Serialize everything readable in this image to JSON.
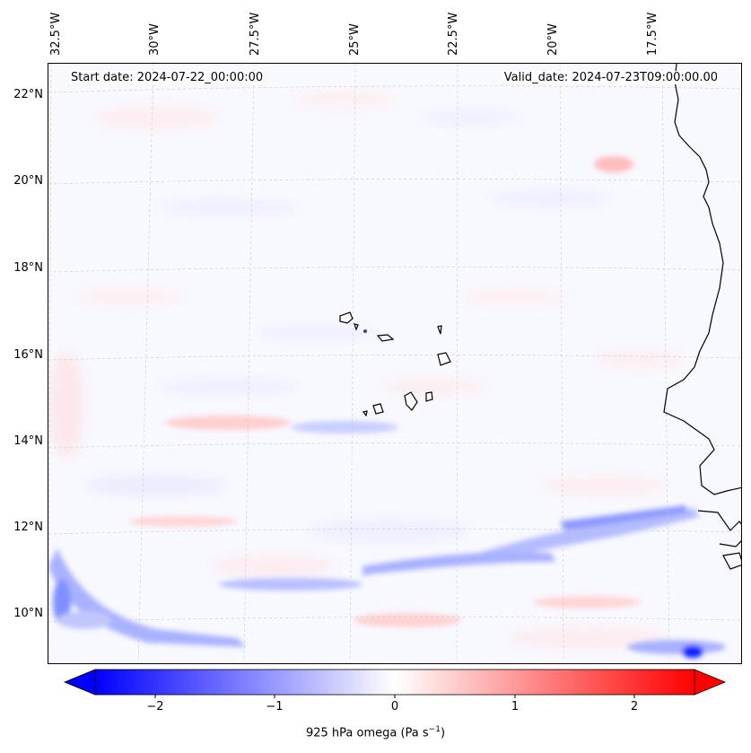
{
  "map": {
    "start_date": "Start date: 2024-07-22_00:00:00",
    "valid_date": "Valid_date: 2024-07-23T09:00:00.00",
    "lon_labels": [
      "32.5°W",
      "30°W",
      "27.5°W",
      "25°W",
      "22.5°W",
      "20°W",
      "17.5°W"
    ],
    "lat_labels": [
      "22°N",
      "20°N",
      "18°N",
      "16°N",
      "14°N",
      "12°N",
      "10°N"
    ],
    "field": "925 hPa omega",
    "extent": {
      "lon_min": -33.0,
      "lon_max": -15.5,
      "lat_min": 8.8,
      "lat_max": 22.8
    },
    "gridlines": true,
    "features": [
      "Cape Verde islands",
      "West African coastline"
    ]
  },
  "colorbar": {
    "label_prefix": "925 hPa omega (Pa s",
    "label_exp": "−1",
    "label_suffix": ")",
    "ticks": [
      "−2",
      "−1",
      "0",
      "1",
      "2"
    ],
    "range": [
      -2.5,
      2.5
    ],
    "extend": "both",
    "colormap": "bwr",
    "min_color": "#0000ff",
    "mid_color": "#ffffff",
    "max_color": "#ff0000"
  }
}
